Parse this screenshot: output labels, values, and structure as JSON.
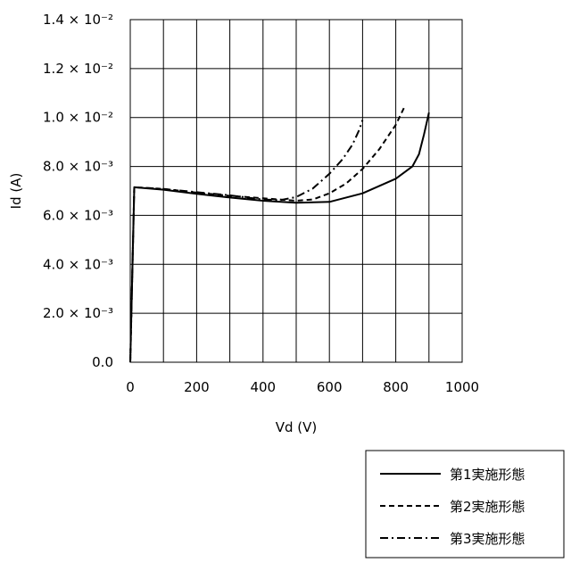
{
  "chart_data": {
    "type": "line",
    "title": "",
    "xlabel": "Vd (V)",
    "ylabel": "Id (A)",
    "xlim": [
      0,
      1000
    ],
    "ylim": [
      0,
      0.014
    ],
    "grid": true,
    "legend_position": "bottom-right",
    "x_ticks": [
      {
        "value": 0,
        "label": "0"
      },
      {
        "value": 200,
        "label": "200"
      },
      {
        "value": 400,
        "label": "400"
      },
      {
        "value": 600,
        "label": "600"
      },
      {
        "value": 800,
        "label": "800"
      },
      {
        "value": 1000,
        "label": "1000"
      }
    ],
    "y_ticks": [
      {
        "value": 0,
        "label": "0.0"
      },
      {
        "value": 0.002,
        "label": "2.0 × 10⁻³"
      },
      {
        "value": 0.004,
        "label": "4.0 × 10⁻³"
      },
      {
        "value": 0.006,
        "label": "6.0 × 10⁻³"
      },
      {
        "value": 0.008,
        "label": "8.0 × 10⁻³"
      },
      {
        "value": 0.01,
        "label": "1.0 × 10⁻²"
      },
      {
        "value": 0.012,
        "label": "1.2 × 10⁻²"
      },
      {
        "value": 0.014,
        "label": "1.4 × 10⁻²"
      }
    ],
    "series": [
      {
        "name": "第1実施形態",
        "dash": "solid",
        "x": [
          0,
          12,
          100,
          200,
          300,
          400,
          500,
          600,
          700,
          800,
          850,
          870,
          885,
          900
        ],
        "y": [
          0,
          0.00715,
          0.00705,
          0.00688,
          0.00673,
          0.0066,
          0.00652,
          0.00655,
          0.0069,
          0.0075,
          0.008,
          0.0085,
          0.0093,
          0.0102
        ]
      },
      {
        "name": "第2実施形態",
        "dash": "dashed",
        "x": [
          0,
          12,
          100,
          200,
          300,
          400,
          500,
          550,
          600,
          650,
          700,
          750,
          800,
          825
        ],
        "y": [
          0,
          0.00715,
          0.00708,
          0.00693,
          0.0068,
          0.0067,
          0.0066,
          0.00665,
          0.0069,
          0.0073,
          0.0079,
          0.0087,
          0.0097,
          0.0104
        ]
      },
      {
        "name": "第3実施形態",
        "dash": "dashdot",
        "x": [
          0,
          12,
          100,
          200,
          300,
          400,
          450,
          500,
          550,
          600,
          640,
          670,
          690,
          700
        ],
        "y": [
          0,
          0.00715,
          0.00708,
          0.00695,
          0.00682,
          0.00665,
          0.00662,
          0.00675,
          0.0071,
          0.0077,
          0.0083,
          0.0089,
          0.0095,
          0.0099
        ]
      }
    ]
  }
}
